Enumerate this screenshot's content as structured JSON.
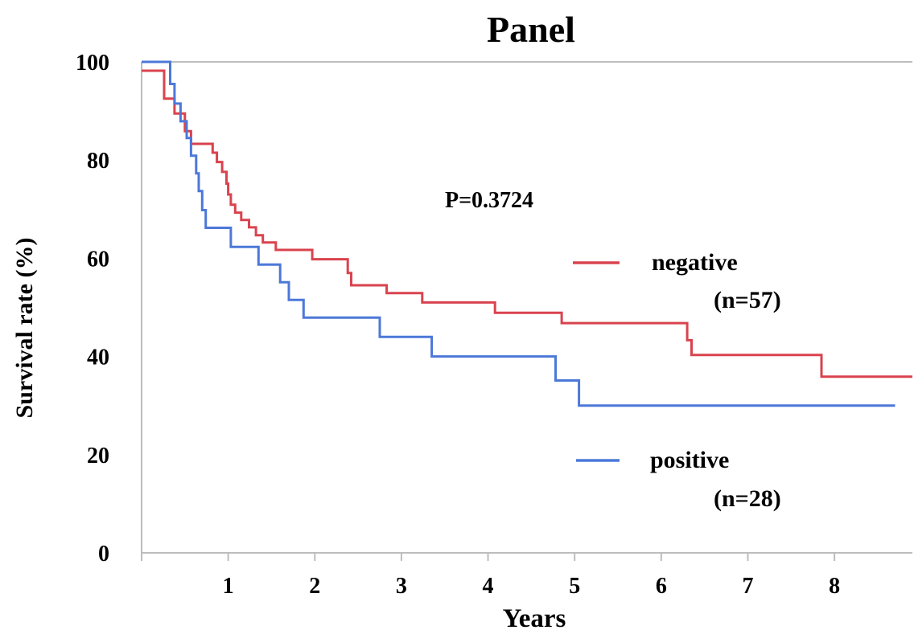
{
  "chart_data": {
    "type": "line",
    "title": "Panel",
    "xlabel": "Years",
    "ylabel": "Survival rate (%)",
    "xlim": [
      0,
      8.9
    ],
    "ylim": [
      0,
      100
    ],
    "x_ticks": [
      1,
      2,
      3,
      4,
      5,
      6,
      7,
      8
    ],
    "y_ticks": [
      0,
      20,
      40,
      60,
      80,
      100
    ],
    "grid": false,
    "annotation": "P=0.3724",
    "legend_position": "right",
    "series": [
      {
        "name": "negative",
        "n_label": "(n=57)",
        "color": "#d9434e",
        "step": true,
        "points": [
          [
            0,
            98.2
          ],
          [
            0.26,
            92.5
          ],
          [
            0.38,
            89.5
          ],
          [
            0.5,
            85.9
          ],
          [
            0.57,
            83.3
          ],
          [
            0.82,
            81.5
          ],
          [
            0.87,
            79.6
          ],
          [
            0.93,
            77.6
          ],
          [
            0.98,
            75.2
          ],
          [
            1.0,
            73.0
          ],
          [
            1.03,
            70.9
          ],
          [
            1.08,
            69.3
          ],
          [
            1.15,
            67.8
          ],
          [
            1.24,
            66.3
          ],
          [
            1.32,
            64.7
          ],
          [
            1.4,
            63.2
          ],
          [
            1.55,
            61.7
          ],
          [
            1.97,
            59.8
          ],
          [
            2.38,
            57.0
          ],
          [
            2.42,
            54.5
          ],
          [
            2.83,
            52.9
          ],
          [
            3.24,
            51.0
          ],
          [
            4.08,
            48.9
          ],
          [
            4.85,
            46.8
          ],
          [
            6.3,
            43.3
          ],
          [
            6.35,
            40.3
          ],
          [
            7.85,
            35.9
          ],
          [
            8.9,
            35.9
          ]
        ]
      },
      {
        "name": "positive",
        "n_label": "(n=28)",
        "color": "#4c78d8",
        "step": true,
        "points": [
          [
            0,
            100
          ],
          [
            0.33,
            95.5
          ],
          [
            0.38,
            91.5
          ],
          [
            0.45,
            87.9
          ],
          [
            0.52,
            84.5
          ],
          [
            0.57,
            80.9
          ],
          [
            0.63,
            77.3
          ],
          [
            0.66,
            73.7
          ],
          [
            0.7,
            69.8
          ],
          [
            0.74,
            66.2
          ],
          [
            1.03,
            62.3
          ],
          [
            1.35,
            58.7
          ],
          [
            1.6,
            55.1
          ],
          [
            1.7,
            51.5
          ],
          [
            1.87,
            47.9
          ],
          [
            2.75,
            44.0
          ],
          [
            3.35,
            40.0
          ],
          [
            4.78,
            35.1
          ],
          [
            5.05,
            30.0
          ],
          [
            8.7,
            30.0
          ]
        ]
      }
    ]
  }
}
